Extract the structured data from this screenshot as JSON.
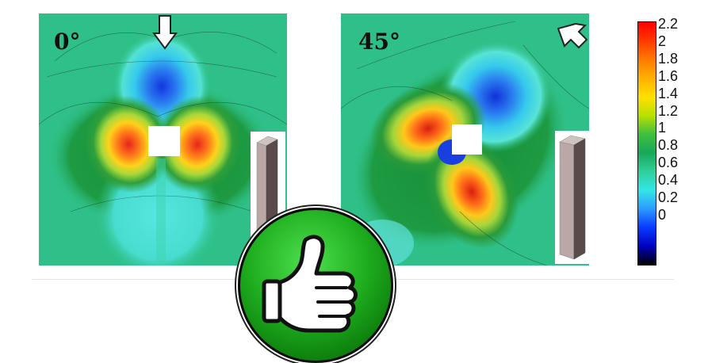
{
  "panels": [
    {
      "angle_label": "0°",
      "wind_arrow": "down-arrow-icon"
    },
    {
      "angle_label": "45°",
      "wind_arrow": "diagonal-arrow-icon"
    }
  ],
  "colorbar": {
    "labels": [
      "2.2",
      "2",
      "1.8",
      "1.6",
      "1.4",
      "1.2",
      "1",
      "0.8",
      "0.6",
      "0.4",
      "0.2",
      "0"
    ],
    "colors": [
      "#ff0000",
      "#ff3a00",
      "#ff7a00",
      "#ffb000",
      "#ffe000",
      "#b8e000",
      "#3fbf3f",
      "#18a85a",
      "#2fcf9a",
      "#33e6e6",
      "#2a9cff",
      "#0a3aff",
      "#0000c0",
      "#000000"
    ]
  },
  "badge": {
    "icon": "thumbs-up-icon"
  }
}
